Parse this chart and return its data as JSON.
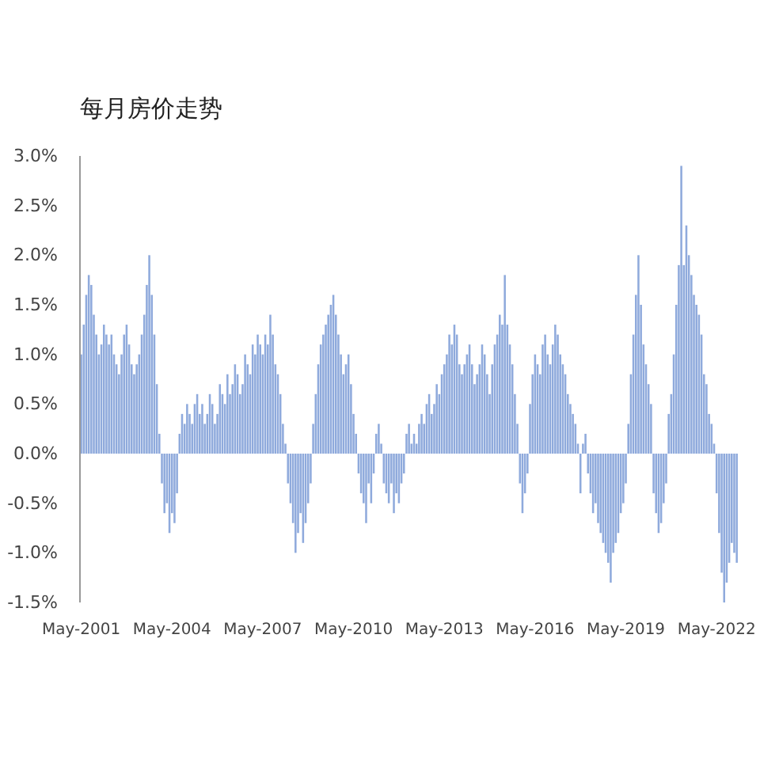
{
  "chart_data": {
    "type": "bar",
    "title": "每月房价走势",
    "categories": [
      "May-2001",
      null,
      null,
      null,
      null,
      null,
      null,
      null,
      null,
      null,
      null,
      null,
      null,
      null,
      null,
      null,
      null,
      null,
      null,
      null,
      null,
      null,
      null,
      null,
      null,
      null,
      null,
      null,
      null,
      null,
      null,
      null,
      null,
      null,
      null,
      null,
      "May-2004",
      null,
      null,
      null,
      null,
      null,
      null,
      null,
      null,
      null,
      null,
      null,
      null,
      null,
      null,
      null,
      null,
      null,
      null,
      null,
      null,
      null,
      null,
      null,
      null,
      null,
      null,
      null,
      null,
      null,
      null,
      null,
      null,
      null,
      null,
      null,
      "May-2007",
      null,
      null,
      null,
      null,
      null,
      null,
      null,
      null,
      null,
      null,
      null,
      null,
      null,
      null,
      null,
      null,
      null,
      null,
      null,
      null,
      null,
      null,
      null,
      null,
      null,
      null,
      null,
      null,
      null,
      null,
      null,
      null,
      null,
      null,
      null,
      "May-2010",
      null,
      null,
      null,
      null,
      null,
      null,
      null,
      null,
      null,
      null,
      null,
      null,
      null,
      null,
      null,
      null,
      null,
      null,
      null,
      null,
      null,
      null,
      null,
      null,
      null,
      null,
      null,
      null,
      null,
      null,
      null,
      null,
      null,
      null,
      null,
      "May-2013",
      null,
      null,
      null,
      null,
      null,
      null,
      null,
      null,
      null,
      null,
      null,
      null,
      null,
      null,
      null,
      null,
      null,
      null,
      null,
      null,
      null,
      null,
      null,
      null,
      null,
      null,
      null,
      null,
      null,
      null,
      null,
      null,
      null,
      null,
      null,
      "May-2016",
      null,
      null,
      null,
      null,
      null,
      null,
      null,
      null,
      null,
      null,
      null,
      null,
      null,
      null,
      null,
      null,
      null,
      null,
      null,
      null,
      null,
      null,
      null,
      null,
      null,
      null,
      null,
      null,
      null,
      null,
      null,
      null,
      null,
      null,
      null,
      "May-2019",
      null,
      null,
      null,
      null,
      null,
      null,
      null,
      null,
      null,
      null,
      null,
      null,
      null,
      null,
      null,
      null,
      null,
      null,
      null,
      null,
      null,
      null,
      null,
      null,
      null,
      null,
      null,
      null,
      null,
      null,
      null,
      null,
      null,
      null,
      null,
      "May-2022",
      null,
      null,
      null,
      null,
      null,
      null,
      null,
      null
    ],
    "series": [
      {
        "color": "#8faadc",
        "values": [
          1.0,
          1.3,
          1.6,
          1.8,
          1.7,
          1.4,
          1.2,
          1.0,
          1.1,
          1.3,
          1.2,
          1.1,
          1.2,
          1.0,
          0.9,
          0.8,
          1.0,
          1.2,
          1.3,
          1.1,
          0.9,
          0.8,
          0.9,
          1.0,
          1.2,
          1.4,
          1.7,
          2.0,
          1.6,
          1.2,
          0.7,
          0.2,
          -0.3,
          -0.6,
          -0.5,
          -0.8,
          -0.6,
          -0.7,
          -0.4,
          0.2,
          0.4,
          0.3,
          0.5,
          0.4,
          0.3,
          0.5,
          0.6,
          0.4,
          0.5,
          0.3,
          0.4,
          0.6,
          0.5,
          0.3,
          0.4,
          0.7,
          0.6,
          0.5,
          0.8,
          0.6,
          0.7,
          0.9,
          0.8,
          0.6,
          0.7,
          1.0,
          0.9,
          0.8,
          1.1,
          1.0,
          1.2,
          1.1,
          1.0,
          1.2,
          1.1,
          1.4,
          1.2,
          0.9,
          0.8,
          0.6,
          0.3,
          0.1,
          -0.3,
          -0.5,
          -0.7,
          -1.0,
          -0.8,
          -0.6,
          -0.9,
          -0.7,
          -0.5,
          -0.3,
          0.3,
          0.6,
          0.9,
          1.1,
          1.2,
          1.3,
          1.4,
          1.5,
          1.6,
          1.4,
          1.2,
          1.0,
          0.8,
          0.9,
          1.0,
          0.7,
          0.4,
          0.2,
          -0.2,
          -0.4,
          -0.5,
          -0.7,
          -0.3,
          -0.5,
          -0.2,
          0.2,
          0.3,
          0.1,
          -0.3,
          -0.4,
          -0.5,
          -0.3,
          -0.6,
          -0.4,
          -0.5,
          -0.3,
          -0.2,
          0.2,
          0.3,
          0.1,
          0.2,
          0.1,
          0.3,
          0.4,
          0.3,
          0.5,
          0.6,
          0.4,
          0.5,
          0.7,
          0.6,
          0.8,
          0.9,
          1.0,
          1.2,
          1.1,
          1.3,
          1.2,
          0.9,
          0.8,
          0.9,
          1.0,
          1.1,
          0.9,
          0.7,
          0.8,
          0.9,
          1.1,
          1.0,
          0.8,
          0.6,
          0.9,
          1.1,
          1.2,
          1.4,
          1.3,
          1.8,
          1.3,
          1.1,
          0.9,
          0.6,
          0.3,
          -0.3,
          -0.6,
          -0.4,
          -0.2,
          0.5,
          0.8,
          1.0,
          0.9,
          0.8,
          1.1,
          1.2,
          1.0,
          0.9,
          1.1,
          1.3,
          1.2,
          1.0,
          0.9,
          0.8,
          0.6,
          0.5,
          0.4,
          0.3,
          0.1,
          -0.4,
          0.1,
          0.2,
          -0.2,
          -0.4,
          -0.6,
          -0.5,
          -0.7,
          -0.8,
          -0.9,
          -1.0,
          -1.1,
          -1.3,
          -1.0,
          -0.9,
          -0.8,
          -0.6,
          -0.5,
          -0.3,
          0.3,
          0.8,
          1.2,
          1.6,
          2.0,
          1.5,
          1.1,
          0.9,
          0.7,
          0.5,
          -0.4,
          -0.6,
          -0.8,
          -0.7,
          -0.5,
          -0.3,
          0.4,
          0.6,
          1.0,
          1.5,
          1.9,
          2.9,
          1.9,
          2.3,
          2.0,
          1.8,
          1.6,
          1.5,
          1.4,
          1.2,
          0.8,
          0.7,
          0.4,
          0.3,
          0.1,
          -0.4,
          -0.8,
          -1.2,
          -1.5,
          -1.3,
          -1.1,
          -0.9,
          -1.0,
          -1.1
        ]
      }
    ],
    "ylim": [
      -1.5,
      3.0
    ],
    "yticks": [
      {
        "value": -1.5,
        "label": "-1.5%"
      },
      {
        "value": -1.0,
        "label": "-1.0%"
      },
      {
        "value": -0.5,
        "label": "-0.5%"
      },
      {
        "value": 0.0,
        "label": "0.0%"
      },
      {
        "value": 0.5,
        "label": "0.5%"
      },
      {
        "value": 1.0,
        "label": "1.0%"
      },
      {
        "value": 1.5,
        "label": "1.5%"
      },
      {
        "value": 2.0,
        "label": "2.0%"
      },
      {
        "value": 2.5,
        "label": "2.5%"
      },
      {
        "value": 3.0,
        "label": "3.0%"
      }
    ]
  }
}
